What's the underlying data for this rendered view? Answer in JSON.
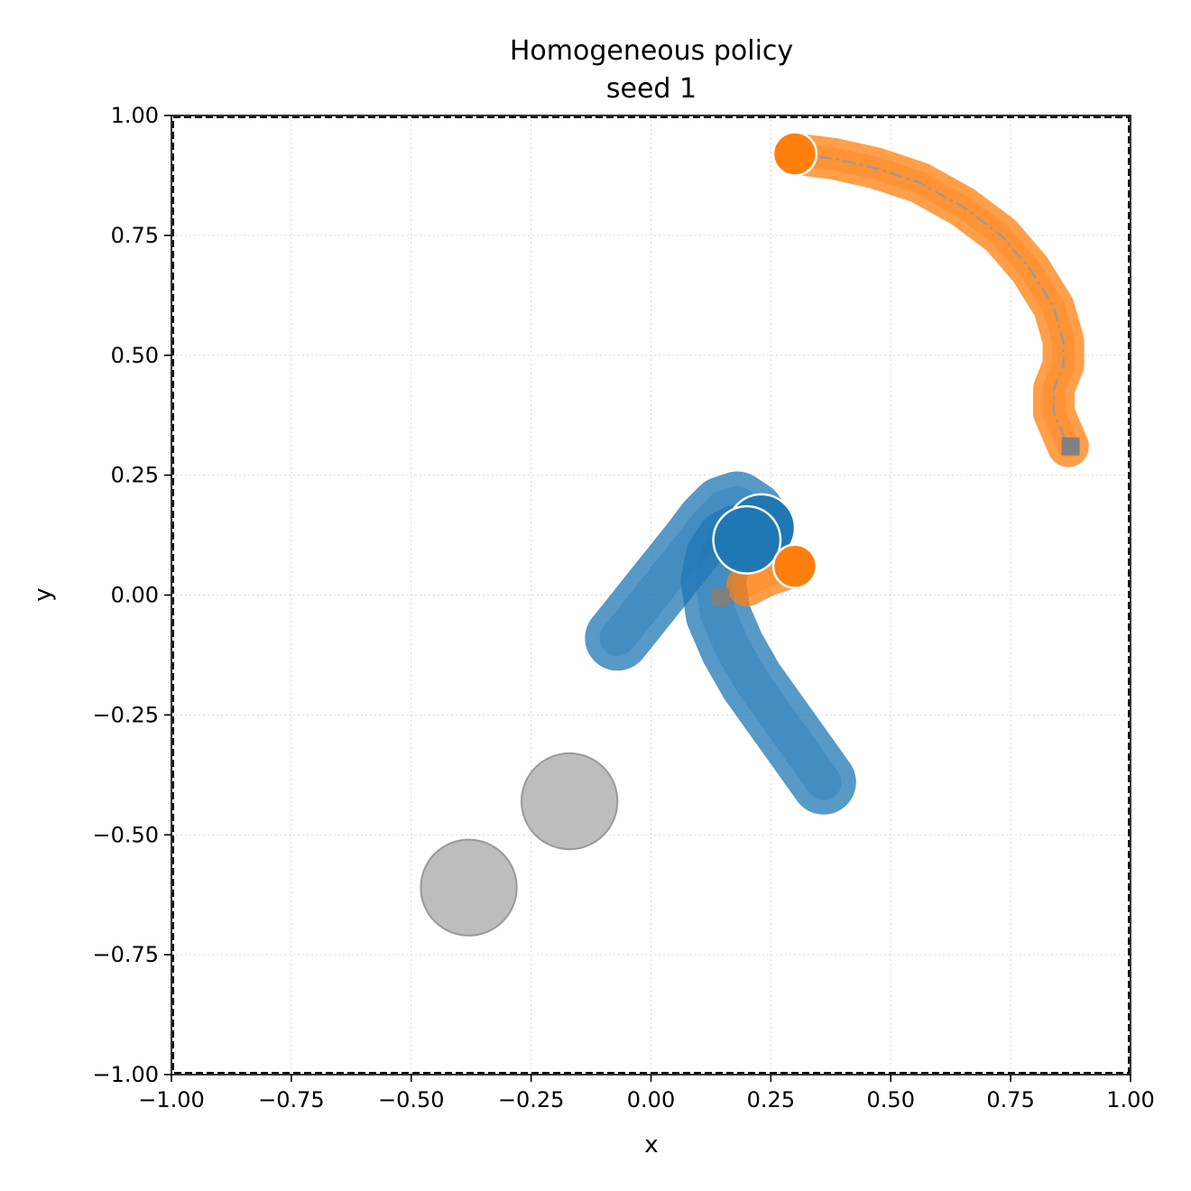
{
  "chart_data": {
    "type": "scatter",
    "title": "Homogeneous policy",
    "subtitle": "seed 1",
    "xlabel": "x",
    "ylabel": "y",
    "xlim": [
      -1.0,
      1.0
    ],
    "ylim": [
      -1.0,
      1.0
    ],
    "x_tick_labels": [
      "−1.00",
      "−0.75",
      "−0.50",
      "−0.25",
      "0.00",
      "0.25",
      "0.50",
      "0.75",
      "1.00"
    ],
    "y_tick_labels": [
      "−1.00",
      "−0.75",
      "−0.50",
      "−0.25",
      "0.00",
      "0.25",
      "0.50",
      "0.75",
      "1.00"
    ],
    "grid": true,
    "boundary": "dashed square at ±1.00",
    "colors": {
      "agent_blue": "#1f77b4",
      "agent_orange": "#ff7f0e",
      "obstacle": "#bdbdbd",
      "goal": "#808080",
      "planned_path": "#9a9a9a"
    },
    "trajectories": [
      {
        "color": "#1f77b4",
        "x": [
          -0.07,
          -0.03,
          0.01,
          0.05,
          0.09,
          0.12,
          0.15,
          0.18,
          0.21,
          0.23
        ],
        "y": [
          -0.09,
          -0.04,
          0.01,
          0.06,
          0.11,
          0.15,
          0.18,
          0.19,
          0.17,
          0.14
        ]
      },
      {
        "color": "#1f77b4",
        "x": [
          0.36,
          0.31,
          0.26,
          0.21,
          0.17,
          0.14,
          0.13,
          0.14,
          0.16,
          0.18,
          0.2
        ],
        "y": [
          -0.39,
          -0.32,
          -0.25,
          -0.18,
          -0.11,
          -0.04,
          0.03,
          0.08,
          0.11,
          0.12,
          0.11
        ]
      },
      {
        "color": "#ff7f0e",
        "x": [
          0.3,
          0.38,
          0.47,
          0.56,
          0.65,
          0.73,
          0.79,
          0.84,
          0.86,
          0.86,
          0.84,
          0.84,
          0.87
        ],
        "y": [
          0.92,
          0.91,
          0.89,
          0.86,
          0.81,
          0.75,
          0.68,
          0.6,
          0.53,
          0.48,
          0.43,
          0.38,
          0.31
        ]
      },
      {
        "color": "#ff7f0e",
        "x": [
          0.2,
          0.24,
          0.27,
          0.3
        ],
        "y": [
          0.02,
          0.04,
          0.05,
          0.06
        ]
      }
    ],
    "planned_path": {
      "x": [
        0.3,
        0.38,
        0.47,
        0.56,
        0.65,
        0.73,
        0.79,
        0.84,
        0.86,
        0.86,
        0.84,
        0.84,
        0.87
      ],
      "y": [
        0.92,
        0.91,
        0.89,
        0.86,
        0.81,
        0.75,
        0.68,
        0.6,
        0.53,
        0.48,
        0.43,
        0.38,
        0.31
      ]
    },
    "agents_final": [
      {
        "color": "#1f77b4",
        "x": 0.23,
        "y": 0.14,
        "r": 0.07
      },
      {
        "color": "#1f77b4",
        "x": 0.2,
        "y": 0.115,
        "r": 0.07
      },
      {
        "color": "#ff7f0e",
        "x": 0.3,
        "y": 0.92,
        "r": 0.045
      },
      {
        "color": "#ff7f0e",
        "x": 0.3,
        "y": 0.06,
        "r": 0.045
      }
    ],
    "obstacles": [
      {
        "x": -0.17,
        "y": -0.43,
        "r": 0.1
      },
      {
        "x": -0.38,
        "y": -0.61,
        "r": 0.1
      }
    ],
    "goals": [
      {
        "x": 0.145,
        "y": -0.005
      },
      {
        "x": 0.875,
        "y": 0.31
      }
    ]
  }
}
